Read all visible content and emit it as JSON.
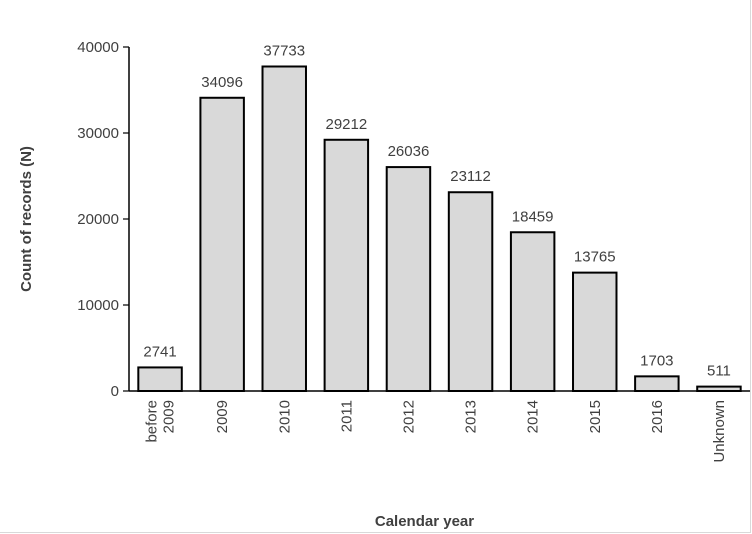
{
  "chart_data": {
    "type": "bar",
    "title": "",
    "xlabel": "Calendar year",
    "ylabel": "Count of records (N)",
    "ylim": [
      0,
      40000
    ],
    "yticks": [
      "0",
      "10000",
      "20000",
      "30000",
      "40000"
    ],
    "yticks_values": [
      0,
      10000,
      20000,
      30000,
      40000
    ],
    "categories": [
      [
        "before",
        "2009"
      ],
      [
        "2009"
      ],
      [
        "2010"
      ],
      [
        "2011"
      ],
      [
        "2012"
      ],
      [
        "2013"
      ],
      [
        "2014"
      ],
      [
        "2015"
      ],
      [
        "2016"
      ],
      [
        "Unknown"
      ]
    ],
    "values": [
      2741,
      34096,
      37733,
      29212,
      26036,
      23112,
      18459,
      13765,
      1703,
      511
    ],
    "data_labels": [
      "2741",
      "34096",
      "37733",
      "29212",
      "26036",
      "23112",
      "18459",
      "13765",
      "1703",
      "511"
    ],
    "bar_color": "#d9d9d9",
    "bar_edge_color": "#000000",
    "grid": false,
    "legend": "none"
  }
}
